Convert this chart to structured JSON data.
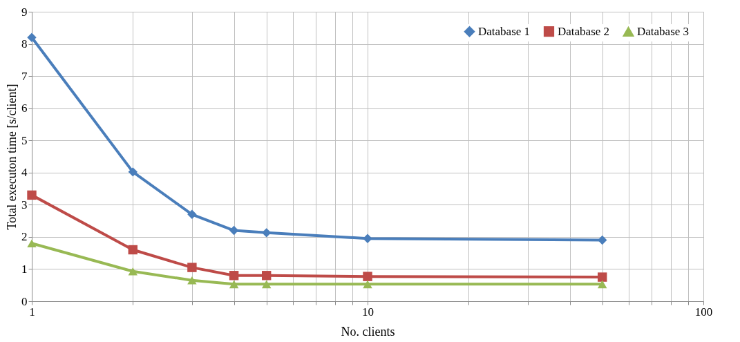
{
  "chart_data": {
    "type": "line",
    "xlabel": "No. clients",
    "ylabel": "Total executon time [s/client]",
    "x": [
      1,
      2,
      3,
      4,
      5,
      10,
      50
    ],
    "series": [
      {
        "name": "Database 1",
        "color": "#4a7ebb",
        "marker": "diamond",
        "values": [
          8.2,
          4.02,
          2.7,
          2.2,
          2.13,
          1.95,
          1.9
        ]
      },
      {
        "name": "Database 2",
        "color": "#be4b48",
        "marker": "square",
        "values": [
          3.3,
          1.6,
          1.05,
          0.8,
          0.8,
          0.77,
          0.75
        ]
      },
      {
        "name": "Database 3",
        "color": "#98b954",
        "marker": "triangle",
        "values": [
          1.8,
          0.93,
          0.65,
          0.53,
          0.53,
          0.53,
          0.53
        ]
      }
    ],
    "log": "x",
    "xlim": [
      1,
      100
    ],
    "xticks": [
      1,
      {
        "value": 2,
        "label": null
      },
      {
        "value": 3,
        "label": null
      },
      {
        "value": 4,
        "label": null
      },
      {
        "value": 5,
        "label": null
      },
      {
        "value": 6,
        "label": null
      },
      {
        "value": 7,
        "label": null
      },
      {
        "value": 8,
        "label": null
      },
      {
        "value": 9,
        "label": null
      },
      10,
      {
        "value": 20,
        "label": null
      },
      {
        "value": 30,
        "label": null
      },
      {
        "value": 40,
        "label": null
      },
      {
        "value": 50,
        "label": null
      },
      {
        "value": 60,
        "label": null
      },
      {
        "value": 70,
        "label": null
      },
      {
        "value": 80,
        "label": null
      },
      {
        "value": 90,
        "label": null
      },
      100
    ],
    "ylim": [
      0,
      9
    ],
    "yticks": [
      0,
      1,
      2,
      3,
      4,
      5,
      6,
      7,
      8,
      9
    ],
    "grid": true,
    "legend": "top right",
    "line_style": "solid"
  }
}
